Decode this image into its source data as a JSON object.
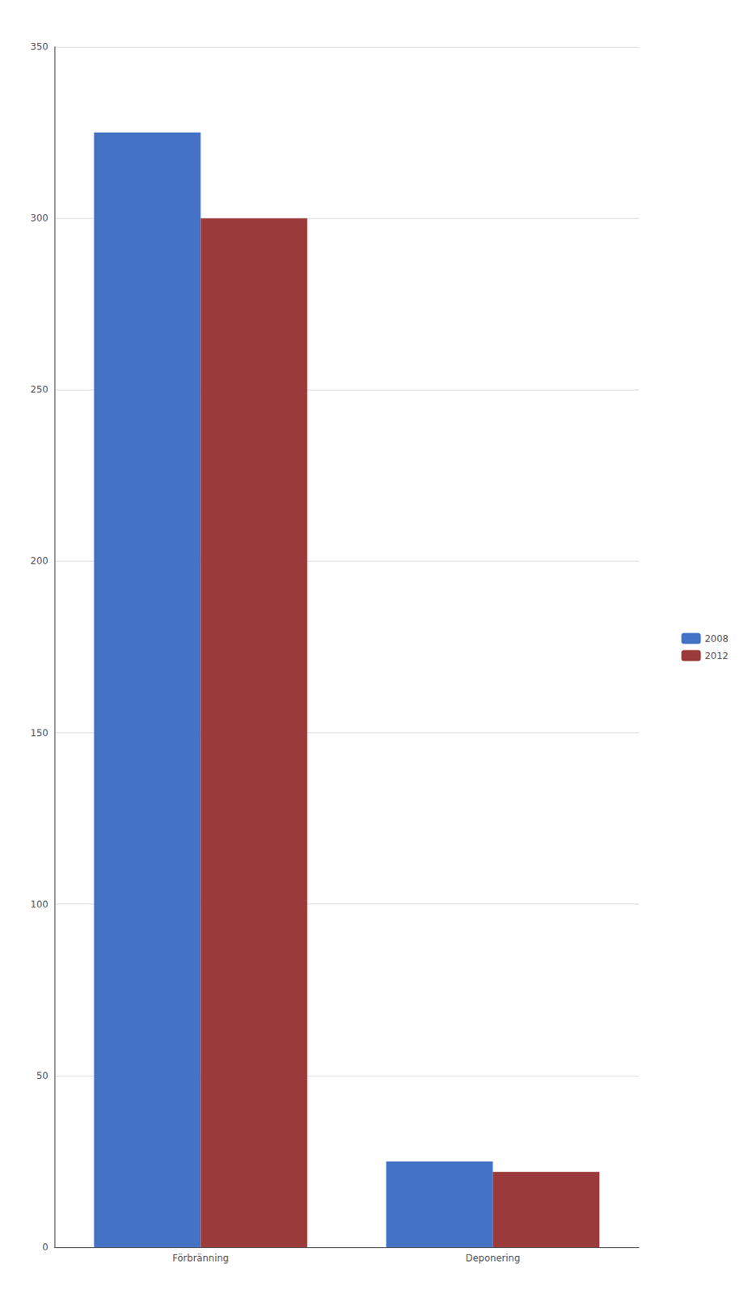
{
  "chart_data": {
    "type": "bar",
    "categories": [
      "Förbränning",
      "Deponering"
    ],
    "series": [
      {
        "name": "2008",
        "color": "#4472C4",
        "values": [
          325,
          25
        ]
      },
      {
        "name": "2012",
        "color": "#9B3A3A",
        "values": [
          300,
          22
        ]
      }
    ],
    "ylim": [
      0,
      350
    ],
    "yticks": [
      0,
      50,
      100,
      150,
      200,
      250,
      300,
      350
    ],
    "grid": true,
    "legend": "right"
  }
}
